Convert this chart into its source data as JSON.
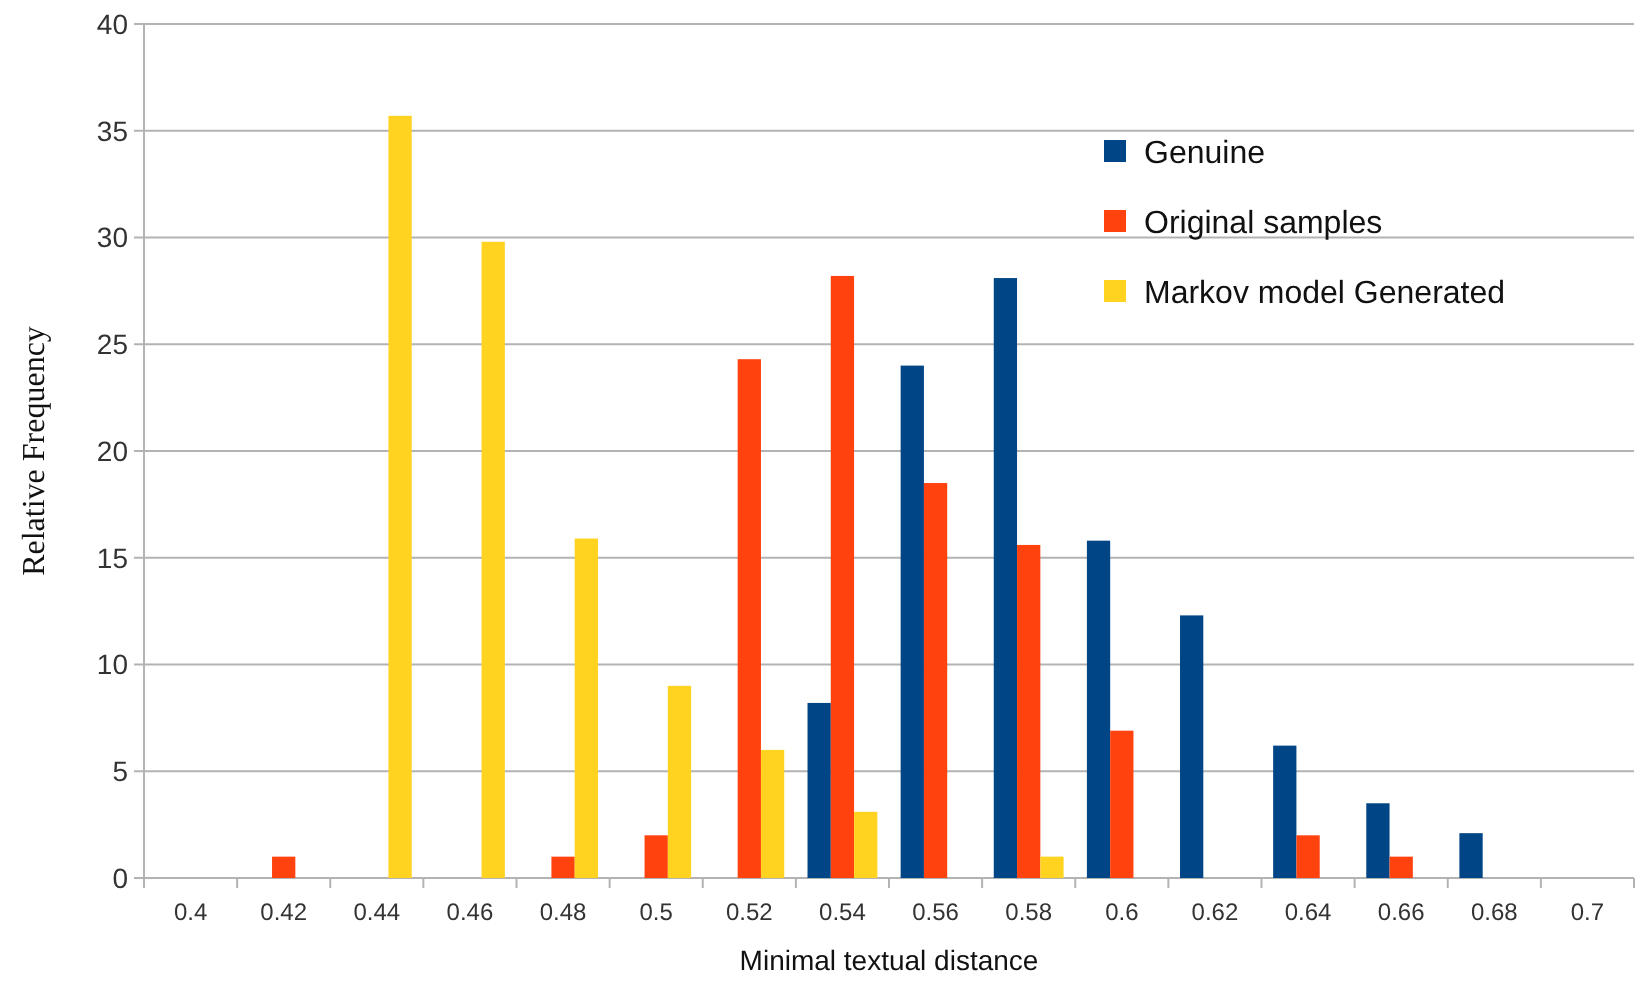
{
  "chart_data": {
    "type": "bar",
    "xlabel": "Minimal textual distance",
    "ylabel": "Relative Frequency",
    "categories": [
      "0.4",
      "0.42",
      "0.44",
      "0.46",
      "0.48",
      "0.5",
      "0.52",
      "0.54",
      "0.56",
      "0.58",
      "0.6",
      "0.62",
      "0.64",
      "0.66",
      "0.68",
      "0.7"
    ],
    "series": [
      {
        "name": "Genuine",
        "color": "#004586",
        "values": [
          0,
          0,
          0,
          0,
          0,
          0,
          0,
          8.2,
          24,
          28.1,
          15.8,
          12.3,
          6.2,
          3.5,
          2.1,
          0
        ]
      },
      {
        "name": "Original samples",
        "color": "#ff420e",
        "values": [
          0,
          1,
          0,
          0,
          1,
          2,
          24.3,
          28.2,
          18.5,
          15.6,
          6.9,
          0,
          2,
          1,
          0,
          0
        ]
      },
      {
        "name": "Markov model Generated",
        "color": "#ffd320",
        "values": [
          0,
          0,
          35.7,
          29.8,
          15.9,
          9,
          6,
          3.1,
          0,
          1,
          0,
          0,
          0,
          0,
          0,
          0
        ]
      }
    ],
    "ylim": [
      0,
      40
    ],
    "yticks": [
      0,
      5,
      10,
      15,
      20,
      25,
      30,
      35,
      40
    ],
    "grid": "y",
    "legend": "top right"
  }
}
